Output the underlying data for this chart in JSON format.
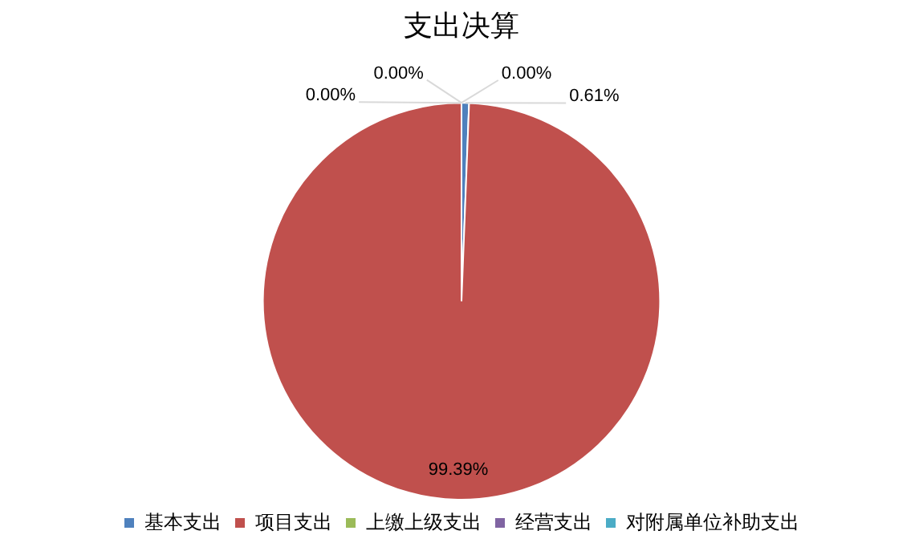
{
  "chart_data": {
    "type": "pie",
    "title": "支出决算",
    "categories": [
      "基本支出",
      "项目支出",
      "上缴上级支出",
      "经营支出",
      "对附属单位补助支出"
    ],
    "values": [
      0.61,
      99.39,
      0,
      0,
      0
    ],
    "value_labels": [
      "0.61%",
      "99.39%",
      "0.00%",
      "0.00%",
      "0.00%"
    ],
    "colors": [
      "#4f81bd",
      "#c0504d",
      "#9bbb59",
      "#8064a2",
      "#4bacc6"
    ],
    "legend": "bottom"
  }
}
